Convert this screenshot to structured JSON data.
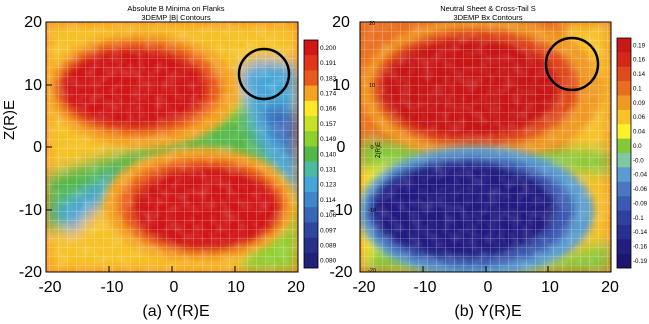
{
  "chart_data": [
    {
      "type": "heatmap",
      "title": "Absolute B Minima on Flanks",
      "subtitle": "3DEMP |B| Contours",
      "ylabel": "Z(R)E",
      "caption": "(a) Y(R)E",
      "xlim": [
        -20,
        20
      ],
      "ylim": [
        -20,
        20
      ],
      "x_ticks": [
        "-20",
        "-10",
        "0",
        "10",
        "20"
      ],
      "y_ticks": [
        "20",
        "10",
        "0",
        "-10",
        "-20"
      ],
      "colorbar": {
        "labels": [
          "0.200",
          "0.191",
          "0.183",
          "0.174",
          "0.166",
          "0.157",
          "0.149",
          "0.140",
          "0.131",
          "0.123",
          "0.114",
          "0.106",
          "0.097",
          "0.089",
          "0.080"
        ],
        "colors": [
          "#d01818",
          "#e0361a",
          "#ea5a1e",
          "#f5a323",
          "#ffe82a",
          "#c8e02a",
          "#8fd030",
          "#53b848",
          "#4cb9a0",
          "#46a6d8",
          "#3f86cc",
          "#3a66b8",
          "#2f479e",
          "#27318a",
          "#1f2278"
        ]
      },
      "features": {
        "highs": [
          {
            "y": -5,
            "z": 10
          },
          {
            "y": 5,
            "z": -10
          }
        ],
        "lows": [
          {
            "y": 16,
            "z": 8
          },
          {
            "y": -12,
            "z": -5
          }
        ]
      },
      "marker_circle": {
        "y": 14.5,
        "z": 12.5
      }
    },
    {
      "type": "heatmap",
      "title": "Neutral Sheet & Cross-Tail S",
      "subtitle": "3DEMP Bx Contours",
      "ylabel": "Z(R)E",
      "caption": "(b) Y(R)E",
      "xlim": [
        -20,
        20
      ],
      "ylim": [
        -20,
        20
      ],
      "x_ticks": [
        "-20",
        "-10",
        "0",
        "10",
        "20"
      ],
      "y_ticks": [
        "20",
        "10",
        "0",
        "-10",
        "-20"
      ],
      "inner_ticks": [
        "20",
        "10",
        "0",
        "-10",
        "-20"
      ],
      "colorbar": {
        "labels": [
          "0.19",
          "0.16",
          "0.14",
          "0.1",
          "0.09",
          "0.06",
          "0.04",
          "0.0",
          "-0.0",
          "-0.04",
          "-0.06",
          "-0.09",
          "-0.1",
          "-0.14",
          "-0.16",
          "-0.19"
        ],
        "colors": [
          "#c81818",
          "#d52818",
          "#e04a1c",
          "#ea6e20",
          "#f09a24",
          "#f8c228",
          "#fff02c",
          "#84c93a",
          "#7fc8a2",
          "#5a9ccf",
          "#4a76c2",
          "#3d5ab2",
          "#3140a0",
          "#28308f",
          "#221f82",
          "#1d1670"
        ]
      },
      "features": {
        "highs": [
          {
            "y": 2,
            "z": 10
          }
        ],
        "lows": [
          {
            "y": 1,
            "z": -10
          }
        ]
      },
      "marker_circle": {
        "y": 13,
        "z": 12.5
      }
    }
  ]
}
